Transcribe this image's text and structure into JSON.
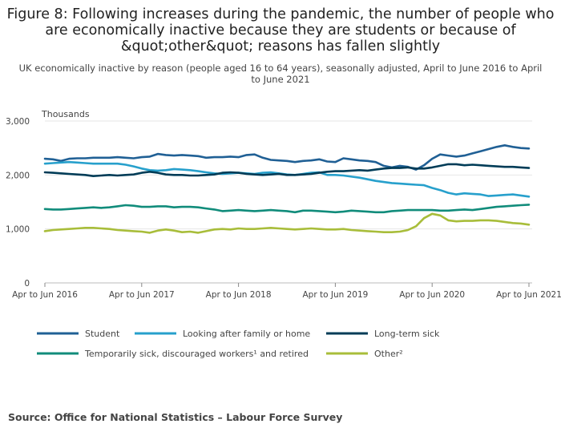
{
  "chart_data": {
    "type": "line",
    "title": "Figure 8: Following increases during the pandemic, the number of people who are economically inactive because they are students or because of &quot;other&quot; reasons has fallen slightly",
    "subtitle": "UK economically inactive by reason (people aged 16 to 64 years), seasonally adjusted, April to June 2016 to April to June 2021",
    "ylabel": "Thousands",
    "xlabel": "",
    "ylim": [
      0,
      3000
    ],
    "yticks": [
      "0",
      "1,000",
      "2,000",
      "3,000"
    ],
    "xticks": [
      "Apr to Jun 2016",
      "Apr to Jun 2017",
      "Apr to Jun 2018",
      "Apr to Jun 2019",
      "Apr to Jun 2020",
      "Apr to Jun 2021"
    ],
    "grid": "horizontal",
    "legend_position": "bottom",
    "x": [
      "AMJ 2016",
      "MJJ 2016",
      "JJA 2016",
      "JAS 2016",
      "ASO 2016",
      "SON 2016",
      "OND 2016",
      "NDJ 2016",
      "DJF 2017",
      "JFM 2017",
      "FMA 2017",
      "MAM 2017",
      "AMJ 2017",
      "MJJ 2017",
      "JJA 2017",
      "JAS 2017",
      "ASO 2017",
      "SON 2017",
      "OND 2017",
      "NDJ 2017",
      "DJF 2018",
      "JFM 2018",
      "FMA 2018",
      "MAM 2018",
      "AMJ 2018",
      "MJJ 2018",
      "JJA 2018",
      "JAS 2018",
      "ASO 2018",
      "SON 2018",
      "OND 2018",
      "NDJ 2018",
      "DJF 2019",
      "JFM 2019",
      "FMA 2019",
      "MAM 2019",
      "AMJ 2019",
      "MJJ 2019",
      "JJA 2019",
      "JAS 2019",
      "ASO 2019",
      "SON 2019",
      "OND 2019",
      "NDJ 2019",
      "DJF 2020",
      "JFM 2020",
      "FMA 2020",
      "MAM 2020",
      "AMJ 2020",
      "MJJ 2020",
      "JJA 2020",
      "JAS 2020",
      "ASO 2020",
      "SON 2020",
      "OND 2020",
      "NDJ 2020",
      "DJF 2021",
      "JFM 2021",
      "FMA 2021",
      "MAM 2021",
      "AMJ 2021"
    ],
    "series": [
      {
        "name": "Student",
        "color": "#206095",
        "values": [
          2300,
          2290,
          2260,
          2300,
          2310,
          2310,
          2320,
          2320,
          2320,
          2330,
          2320,
          2310,
          2330,
          2340,
          2390,
          2370,
          2360,
          2370,
          2360,
          2350,
          2320,
          2330,
          2330,
          2340,
          2330,
          2370,
          2380,
          2320,
          2280,
          2270,
          2260,
          2240,
          2260,
          2270,
          2290,
          2250,
          2240,
          2310,
          2290,
          2270,
          2260,
          2240,
          2170,
          2140,
          2170,
          2150,
          2100,
          2180,
          2300,
          2380,
          2360,
          2340,
          2360,
          2400,
          2440,
          2480,
          2520,
          2550,
          2520,
          2500,
          2490
        ]
      },
      {
        "name": "Looking after family or home",
        "color": "#27A0CC",
        "values": [
          2210,
          2220,
          2230,
          2240,
          2230,
          2220,
          2210,
          2210,
          2210,
          2210,
          2190,
          2160,
          2120,
          2090,
          2080,
          2090,
          2110,
          2100,
          2090,
          2070,
          2050,
          2030,
          2020,
          2030,
          2040,
          2030,
          2020,
          2040,
          2050,
          2030,
          2010,
          2000,
          2020,
          2040,
          2050,
          2000,
          2000,
          1990,
          1970,
          1950,
          1920,
          1890,
          1870,
          1850,
          1840,
          1830,
          1820,
          1810,
          1760,
          1720,
          1670,
          1640,
          1660,
          1650,
          1640,
          1610,
          1620,
          1630,
          1640,
          1620,
          1600
        ]
      },
      {
        "name": "Long-term sick",
        "color": "#003C57",
        "values": [
          2050,
          2040,
          2030,
          2020,
          2010,
          2000,
          1980,
          1990,
          2000,
          1990,
          2000,
          2010,
          2040,
          2060,
          2040,
          2010,
          2000,
          2000,
          1990,
          1990,
          2000,
          2010,
          2040,
          2050,
          2040,
          2020,
          2010,
          2000,
          2010,
          2020,
          2000,
          2000,
          2010,
          2020,
          2040,
          2060,
          2070,
          2070,
          2080,
          2090,
          2080,
          2100,
          2120,
          2130,
          2130,
          2140,
          2120,
          2120,
          2140,
          2170,
          2200,
          2200,
          2180,
          2190,
          2180,
          2170,
          2160,
          2150,
          2150,
          2140,
          2130
        ]
      },
      {
        "name": "Temporarily sick, discouraged workers¹ and retired",
        "color": "#118C7B",
        "values": [
          1370,
          1360,
          1360,
          1370,
          1380,
          1390,
          1400,
          1390,
          1400,
          1420,
          1440,
          1430,
          1410,
          1410,
          1420,
          1420,
          1400,
          1410,
          1410,
          1400,
          1380,
          1360,
          1330,
          1340,
          1350,
          1340,
          1330,
          1340,
          1350,
          1340,
          1330,
          1310,
          1340,
          1340,
          1330,
          1320,
          1310,
          1320,
          1340,
          1330,
          1320,
          1310,
          1310,
          1330,
          1340,
          1350,
          1350,
          1350,
          1350,
          1340,
          1340,
          1350,
          1360,
          1350,
          1370,
          1390,
          1410,
          1420,
          1430,
          1440,
          1450
        ]
      },
      {
        "name": "Other²",
        "color": "#A8BD3A",
        "values": [
          960,
          980,
          990,
          1000,
          1010,
          1020,
          1020,
          1010,
          1000,
          980,
          970,
          960,
          950,
          930,
          970,
          990,
          970,
          940,
          950,
          930,
          960,
          990,
          1000,
          990,
          1010,
          1000,
          1000,
          1010,
          1020,
          1010,
          1000,
          990,
          1000,
          1010,
          1000,
          990,
          990,
          1000,
          980,
          970,
          960,
          950,
          940,
          940,
          950,
          980,
          1050,
          1200,
          1280,
          1250,
          1160,
          1140,
          1150,
          1150,
          1160,
          1160,
          1150,
          1130,
          1110,
          1100,
          1080
        ]
      }
    ]
  },
  "source": "Source: Office for National Statistics – Labour Force Survey"
}
